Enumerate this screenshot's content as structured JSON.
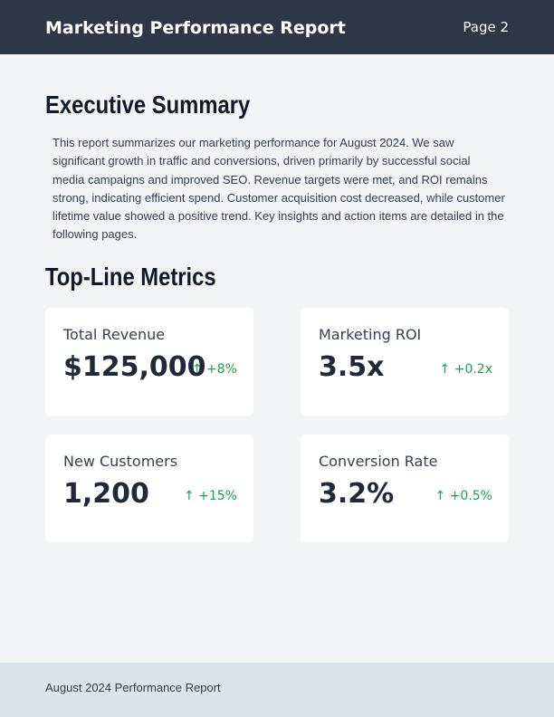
{
  "header": {
    "title": "Marketing Performance Report",
    "page": "Page 2"
  },
  "summary": {
    "heading": "Executive Summary",
    "text": "This report summarizes our marketing performance for August 2024. We saw significant growth in traffic and conversions, driven primarily by successful social media campaigns and improved SEO. Revenue targets were met, and ROI remains strong, indicating efficient spend. Customer acquisition cost decreased, while customer lifetime value showed a positive trend. Key insights and action items are detailed in the following pages."
  },
  "metrics": {
    "heading": "Top-Line Metrics",
    "cards": [
      {
        "label": "Total Revenue",
        "value": "$125,000",
        "change": "+8%"
      },
      {
        "label": "Marketing ROI",
        "value": "3.5x",
        "change": "+0.2x"
      },
      {
        "label": "New Customers",
        "value": "1,200",
        "change": "+15%"
      },
      {
        "label": "Conversion Rate",
        "value": "3.2%",
        "change": "+0.5%"
      }
    ]
  },
  "footer": {
    "text": "August 2024 Performance Report"
  }
}
